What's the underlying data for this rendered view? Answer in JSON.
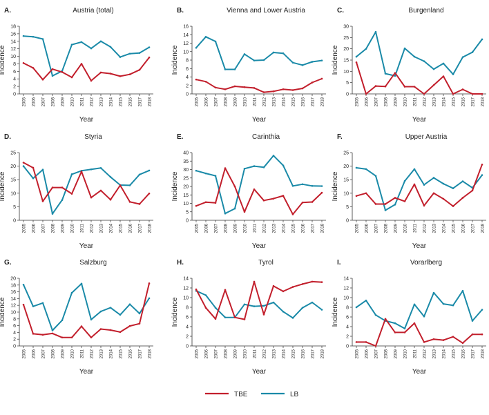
{
  "chart_data": [
    {
      "type": "line",
      "panel": "A.",
      "title": "Austria (total)",
      "xlabel": "Year",
      "ylabel": "Incidence",
      "ylim": [
        0,
        18
      ],
      "yticks": [
        0,
        2,
        4,
        6,
        8,
        10,
        12,
        14,
        16,
        18
      ],
      "x": [
        "2005",
        "2006",
        "2007",
        "2008",
        "2009",
        "2010",
        "2011",
        "2012",
        "2013",
        "2014",
        "2015",
        "2016",
        "2017",
        "2018"
      ],
      "series": [
        {
          "name": "TBE",
          "values": [
            8.2,
            6.9,
            3.8,
            6.6,
            5.8,
            4.4,
            8.0,
            3.5,
            5.7,
            5.4,
            4.7,
            5.2,
            6.4,
            9.7
          ]
        },
        {
          "name": "LB",
          "values": [
            15.4,
            15.2,
            14.6,
            4.8,
            6.1,
            13.1,
            13.8,
            12.1,
            14.0,
            12.5,
            9.8,
            10.7,
            10.9,
            12.4
          ]
        }
      ]
    },
    {
      "type": "line",
      "panel": "B.",
      "title": "Vienna and Lower Austria",
      "xlabel": "Year",
      "ylabel": "Incidence",
      "ylim": [
        0,
        16
      ],
      "yticks": [
        0,
        2,
        4,
        6,
        8,
        10,
        12,
        14,
        16
      ],
      "x": [
        "2005",
        "2006",
        "2007",
        "2008",
        "2009",
        "2010",
        "2011",
        "2012",
        "2013",
        "2014",
        "2015",
        "2016",
        "2017",
        "2018"
      ],
      "series": [
        {
          "name": "TBE",
          "values": [
            3.4,
            2.9,
            1.5,
            1.1,
            1.8,
            1.6,
            1.4,
            0.4,
            0.6,
            1.1,
            0.9,
            1.3,
            2.7,
            3.6
          ]
        },
        {
          "name": "LB",
          "values": [
            10.9,
            13.5,
            12.4,
            5.8,
            5.8,
            9.4,
            7.9,
            8.0,
            9.8,
            9.6,
            7.4,
            6.8,
            7.6,
            7.9
          ]
        }
      ]
    },
    {
      "type": "line",
      "panel": "C.",
      "title": "Burgenland",
      "xlabel": "Year",
      "ylabel": "Incidence",
      "ylim": [
        0,
        30
      ],
      "yticks": [
        0,
        5,
        10,
        15,
        20,
        25,
        30
      ],
      "x": [
        "2005",
        "2006",
        "2007",
        "2008",
        "2009",
        "2010",
        "2011",
        "2012",
        "2013",
        "2014",
        "2015",
        "2016",
        "2017",
        "2018"
      ],
      "series": [
        {
          "name": "TBE",
          "values": [
            14.0,
            0.0,
            3.5,
            3.3,
            9.3,
            3.2,
            3.2,
            0.0,
            3.9,
            7.8,
            0.0,
            2.0,
            0.0,
            0.0
          ]
        },
        {
          "name": "LB",
          "values": [
            16.5,
            20.0,
            27.5,
            9.0,
            8.0,
            20.2,
            16.5,
            14.5,
            11.0,
            13.5,
            8.7,
            16.3,
            18.5,
            24.2
          ]
        }
      ]
    },
    {
      "type": "line",
      "panel": "D.",
      "title": "Styria",
      "xlabel": "Year",
      "ylabel": "Incidence",
      "ylim": [
        0,
        25
      ],
      "yticks": [
        0,
        5,
        10,
        15,
        20,
        25
      ],
      "x": [
        "2005",
        "2006",
        "2007",
        "2008",
        "2009",
        "2010",
        "2011",
        "2012",
        "2013",
        "2014",
        "2015",
        "2016",
        "2017",
        "2018"
      ],
      "series": [
        {
          "name": "TBE",
          "values": [
            21.3,
            19.4,
            7.0,
            12.1,
            12.1,
            9.8,
            18.0,
            8.4,
            11.0,
            7.6,
            12.9,
            6.8,
            6.0,
            9.9
          ]
        },
        {
          "name": "LB",
          "values": [
            20.0,
            15.5,
            18.7,
            2.4,
            7.5,
            17.0,
            18.3,
            18.8,
            19.3,
            16.0,
            13.0,
            12.9,
            16.9,
            18.4
          ]
        }
      ]
    },
    {
      "type": "line",
      "panel": "E.",
      "title": "Carinthia",
      "xlabel": "Year",
      "ylabel": "Incidence",
      "ylim": [
        0,
        40
      ],
      "yticks": [
        0,
        5,
        10,
        15,
        20,
        25,
        30,
        35,
        40
      ],
      "x": [
        "2005",
        "2006",
        "2007",
        "2008",
        "2009",
        "2010",
        "2011",
        "2012",
        "2013",
        "2014",
        "2015",
        "2016",
        "2017",
        "2018"
      ],
      "series": [
        {
          "name": "TBE",
          "values": [
            8.5,
            10.7,
            10.3,
            30.8,
            20.0,
            5.0,
            18.3,
            11.7,
            12.8,
            14.5,
            3.5,
            10.5,
            10.8,
            16.3
          ]
        },
        {
          "name": "LB",
          "values": [
            29.3,
            27.7,
            26.3,
            4.0,
            6.9,
            30.5,
            32.0,
            31.3,
            38.2,
            32.4,
            20.3,
            21.3,
            20.3,
            20.2
          ]
        }
      ]
    },
    {
      "type": "line",
      "panel": "F.",
      "title": "Upper Austria",
      "xlabel": "Year",
      "ylabel": "Incidence",
      "ylim": [
        0,
        25
      ],
      "yticks": [
        0,
        5,
        10,
        15,
        20,
        25
      ],
      "x": [
        "2005",
        "2006",
        "2007",
        "2008",
        "2009",
        "2010",
        "2011",
        "2012",
        "2013",
        "2014",
        "2015",
        "2016",
        "2017",
        "2018"
      ],
      "series": [
        {
          "name": "TBE",
          "values": [
            9.0,
            10.0,
            6.0,
            6.0,
            8.3,
            7.0,
            13.3,
            5.4,
            10.0,
            7.9,
            5.2,
            8.3,
            11.0,
            20.6
          ]
        },
        {
          "name": "LB",
          "values": [
            19.4,
            18.9,
            16.4,
            3.7,
            5.8,
            14.5,
            18.9,
            13.1,
            15.7,
            13.5,
            11.8,
            14.4,
            12.0,
            16.7
          ]
        }
      ]
    },
    {
      "type": "line",
      "panel": "G.",
      "title": "Salzburg",
      "xlabel": "Year",
      "ylabel": "Incidence",
      "ylim": [
        0,
        20
      ],
      "yticks": [
        0,
        2,
        4,
        6,
        8,
        10,
        12,
        14,
        16,
        18,
        20
      ],
      "x": [
        "2005",
        "2006",
        "2007",
        "2008",
        "2009",
        "2010",
        "2011",
        "2012",
        "2013",
        "2014",
        "2015",
        "2016",
        "2017",
        "2018"
      ],
      "series": [
        {
          "name": "TBE",
          "values": [
            12.2,
            3.6,
            3.3,
            3.7,
            2.5,
            2.5,
            5.8,
            2.5,
            5.0,
            4.7,
            4.1,
            5.9,
            6.6,
            18.5
          ]
        },
        {
          "name": "LB",
          "values": [
            18.1,
            11.7,
            12.7,
            4.6,
            7.6,
            15.7,
            18.4,
            7.8,
            10.2,
            11.3,
            9.2,
            12.3,
            9.6,
            14.1
          ]
        }
      ]
    },
    {
      "type": "line",
      "panel": "H.",
      "title": "Tyrol",
      "xlabel": "Year",
      "ylabel": "Incidence",
      "ylim": [
        0,
        14
      ],
      "yticks": [
        0,
        2,
        4,
        6,
        8,
        10,
        12,
        14
      ],
      "x": [
        "2005",
        "2006",
        "2007",
        "2008",
        "2009",
        "2010",
        "2011",
        "2012",
        "2013",
        "2014",
        "2015",
        "2016",
        "2017",
        "2018"
      ],
      "series": [
        {
          "name": "TBE",
          "values": [
            11.7,
            7.9,
            5.6,
            11.6,
            5.9,
            5.5,
            13.3,
            6.5,
            12.4,
            11.3,
            12.2,
            12.8,
            13.3,
            13.2
          ]
        },
        {
          "name": "LB",
          "values": [
            11.4,
            10.5,
            7.9,
            5.9,
            5.9,
            8.6,
            8.2,
            8.3,
            9.0,
            7.1,
            5.8,
            7.9,
            9.0,
            7.5
          ]
        }
      ]
    },
    {
      "type": "line",
      "panel": "I.",
      "title": "Vorarlberg",
      "xlabel": "Year",
      "ylabel": "Incidence",
      "ylim": [
        0,
        14
      ],
      "yticks": [
        0,
        2,
        4,
        6,
        8,
        10,
        12,
        14
      ],
      "x": [
        "2005",
        "2006",
        "2007",
        "2008",
        "2009",
        "2010",
        "2011",
        "2012",
        "2013",
        "2014",
        "2015",
        "2016",
        "2017",
        "2018"
      ],
      "series": [
        {
          "name": "TBE",
          "values": [
            0.8,
            0.8,
            0.0,
            5.6,
            2.8,
            2.8,
            4.7,
            0.8,
            1.4,
            1.2,
            1.9,
            0.6,
            2.4,
            2.4
          ]
        },
        {
          "name": "LB",
          "values": [
            8.0,
            9.4,
            6.4,
            5.2,
            4.7,
            3.6,
            8.6,
            6.1,
            11.0,
            8.7,
            8.4,
            11.4,
            5.2,
            7.5
          ]
        }
      ]
    }
  ],
  "legend": {
    "items": [
      {
        "name": "TBE",
        "color": "#c21f2c"
      },
      {
        "name": "LB",
        "color": "#1a8aa8"
      }
    ]
  }
}
